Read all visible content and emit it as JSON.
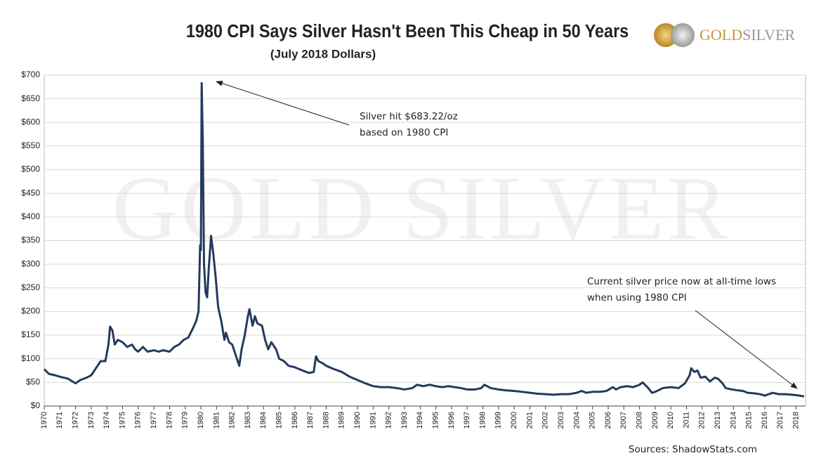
{
  "chart_data": {
    "type": "line",
    "title": "1980 CPI Says Silver Hasn't Been This Cheap in 50 Years",
    "subtitle": "(July 2018 Dollars)",
    "watermark": "GOLD SILVER",
    "logo": {
      "gold": "GOLD",
      "silver": "SILVER"
    },
    "source": "Sources: ShadowStats.com",
    "annotations": [
      [
        "Silver hit $683.22/oz",
        "based on 1980 CPI"
      ],
      [
        "Current silver price now at all-time lows",
        "when using 1980 CPI"
      ]
    ],
    "color": "#243a5e",
    "grid": true,
    "x": [
      1970.0,
      1970.3,
      1970.7,
      1971.0,
      1971.5,
      1971.9,
      1972.0,
      1972.3,
      1972.7,
      1973.0,
      1973.3,
      1973.6,
      1973.9,
      1974.1,
      1974.2,
      1974.35,
      1974.5,
      1974.7,
      1975.0,
      1975.3,
      1975.6,
      1975.8,
      1976.0,
      1976.3,
      1976.6,
      1977.0,
      1977.3,
      1977.6,
      1978.0,
      1978.3,
      1978.6,
      1978.9,
      1979.2,
      1979.5,
      1979.7,
      1979.85,
      1979.95,
      1980.0,
      1980.05,
      1980.12,
      1980.2,
      1980.3,
      1980.4,
      1980.5,
      1980.65,
      1980.8,
      1980.95,
      1981.1,
      1981.3,
      1981.5,
      1981.6,
      1981.8,
      1982.0,
      1982.3,
      1982.45,
      1982.6,
      1982.8,
      1983.0,
      1983.1,
      1983.3,
      1983.45,
      1983.6,
      1983.9,
      1984.1,
      1984.3,
      1984.5,
      1984.8,
      1985.0,
      1985.3,
      1985.6,
      1986.0,
      1986.5,
      1986.9,
      1987.2,
      1987.35,
      1987.5,
      1987.8,
      1988.0,
      1988.5,
      1989.0,
      1989.5,
      1990.0,
      1990.5,
      1991.0,
      1991.5,
      1992.0,
      1992.5,
      1993.0,
      1993.5,
      1993.8,
      1994.2,
      1994.6,
      1995.0,
      1995.4,
      1995.8,
      1996.2,
      1996.6,
      1997.0,
      1997.5,
      1997.9,
      1998.1,
      1998.5,
      1999.0,
      1999.5,
      2000.0,
      2000.5,
      2001.0,
      2001.5,
      2002.0,
      2002.5,
      2003.0,
      2003.5,
      2004.0,
      2004.3,
      2004.6,
      2005.0,
      2005.5,
      2005.9,
      2006.3,
      2006.5,
      2006.8,
      2007.2,
      2007.6,
      2008.0,
      2008.2,
      2008.5,
      2008.8,
      2009.0,
      2009.5,
      2010.0,
      2010.5,
      2010.9,
      2011.2,
      2011.3,
      2011.5,
      2011.7,
      2011.9,
      2012.2,
      2012.5,
      2012.8,
      2013.0,
      2013.3,
      2013.5,
      2013.9,
      2014.3,
      2014.6,
      2014.9,
      2015.3,
      2015.7,
      2016.0,
      2016.5,
      2016.9,
      2017.3,
      2017.7,
      2018.0,
      2018.4,
      2018.5
    ],
    "values": [
      78,
      68,
      65,
      62,
      58,
      50,
      48,
      55,
      60,
      65,
      80,
      95,
      95,
      130,
      168,
      160,
      130,
      140,
      135,
      125,
      130,
      120,
      115,
      125,
      115,
      118,
      115,
      118,
      115,
      125,
      130,
      140,
      145,
      165,
      180,
      200,
      340,
      330,
      683.22,
      560,
      300,
      240,
      230,
      290,
      360,
      320,
      270,
      210,
      180,
      140,
      155,
      135,
      130,
      100,
      85,
      120,
      150,
      190,
      205,
      170,
      190,
      175,
      170,
      140,
      120,
      135,
      120,
      100,
      95,
      85,
      82,
      75,
      70,
      72,
      105,
      95,
      90,
      85,
      78,
      72,
      62,
      55,
      48,
      42,
      40,
      40,
      38,
      35,
      38,
      45,
      42,
      45,
      42,
      40,
      42,
      40,
      38,
      35,
      35,
      38,
      45,
      38,
      35,
      33,
      32,
      30,
      28,
      26,
      25,
      24,
      25,
      25,
      28,
      32,
      28,
      30,
      30,
      32,
      40,
      35,
      40,
      42,
      40,
      45,
      50,
      40,
      28,
      30,
      38,
      40,
      38,
      48,
      65,
      80,
      72,
      75,
      60,
      62,
      52,
      60,
      58,
      48,
      38,
      35,
      33,
      32,
      28,
      27,
      25,
      22,
      28,
      25,
      25,
      24,
      23,
      21,
      20
    ],
    "xlim": [
      1970,
      2018.6
    ],
    "xticks": [
      1970,
      1971,
      1972,
      1973,
      1974,
      1975,
      1976,
      1977,
      1978,
      1979,
      1980,
      1981,
      1982,
      1983,
      1984,
      1985,
      1986,
      1987,
      1988,
      1989,
      1990,
      1991,
      1992,
      1993,
      1994,
      1995,
      1996,
      1997,
      1998,
      1999,
      2000,
      2001,
      2002,
      2003,
      2004,
      2005,
      2006,
      2007,
      2008,
      2009,
      2010,
      2011,
      2012,
      2013,
      2014,
      2015,
      2016,
      2017,
      2018
    ],
    "ylim": [
      0,
      700
    ],
    "yticks": [
      {
        "value": 0,
        "label": "$0"
      },
      {
        "value": 50,
        "label": "$50"
      },
      {
        "value": 100,
        "label": "$100"
      },
      {
        "value": 150,
        "label": "$150"
      },
      {
        "value": 200,
        "label": "$200"
      },
      {
        "value": 250,
        "label": "$250"
      },
      {
        "value": 300,
        "label": "$300"
      },
      {
        "value": 350,
        "label": "$350"
      },
      {
        "value": 400,
        "label": "$400"
      },
      {
        "value": 450,
        "label": "$450"
      },
      {
        "value": 500,
        "label": "$500"
      },
      {
        "value": 550,
        "label": "$550"
      },
      {
        "value": 600,
        "label": "$600"
      },
      {
        "value": 650,
        "label": "$650"
      },
      {
        "value": 700,
        "label": "$700"
      }
    ]
  }
}
